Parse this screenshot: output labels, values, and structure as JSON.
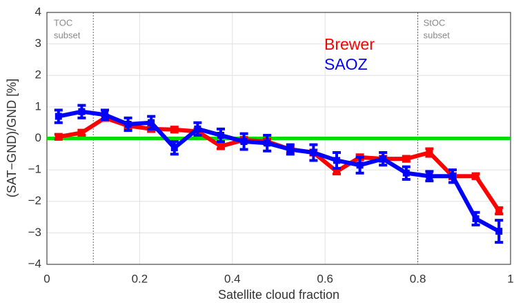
{
  "chart_data": {
    "type": "line",
    "xlabel": "Satellite cloud fraction",
    "ylabel": "(SAT−GND)/GND [%]",
    "x": [
      0.025,
      0.075,
      0.125,
      0.175,
      0.225,
      0.275,
      0.325,
      0.375,
      0.425,
      0.475,
      0.525,
      0.575,
      0.625,
      0.675,
      0.725,
      0.775,
      0.825,
      0.875,
      0.925,
      0.975
    ],
    "series": [
      {
        "name": "Brewer",
        "color": "#ff0000",
        "values": [
          0.05,
          0.18,
          0.65,
          0.4,
          0.3,
          0.28,
          0.22,
          -0.25,
          -0.05,
          -0.1,
          -0.35,
          -0.45,
          -1.05,
          -0.6,
          -0.65,
          -0.65,
          -0.45,
          -1.2,
          -1.2,
          -2.3
        ],
        "errors": [
          0.08,
          0.08,
          0.08,
          0.08,
          0.08,
          0.08,
          0.08,
          0.08,
          0.08,
          0.08,
          0.08,
          0.08,
          0.08,
          0.08,
          0.08,
          0.08,
          0.12,
          0.08,
          0.08,
          0.1
        ]
      },
      {
        "name": "SAOZ",
        "color": "#0000ff",
        "values": [
          0.7,
          0.85,
          0.75,
          0.45,
          0.5,
          -0.3,
          0.3,
          0.1,
          -0.1,
          -0.15,
          -0.35,
          -0.45,
          -0.7,
          -0.85,
          -0.65,
          -1.1,
          -1.2,
          -1.2,
          -2.55,
          -2.95
        ],
        "errors": [
          0.2,
          0.2,
          0.15,
          0.2,
          0.2,
          0.2,
          0.2,
          0.2,
          0.25,
          0.25,
          0.15,
          0.25,
          0.25,
          0.25,
          0.2,
          0.2,
          0.15,
          0.2,
          0.2,
          0.35
        ]
      }
    ],
    "xlim": [
      0,
      1
    ],
    "xticks": [
      0,
      0.2,
      0.4,
      0.6,
      0.8,
      1
    ],
    "ylim": [
      -4,
      4
    ],
    "yticks": [
      {
        "value": -4,
        "label": "−4"
      },
      {
        "value": -3,
        "label": "−3"
      },
      {
        "value": -2,
        "label": "−2"
      },
      {
        "value": -1,
        "label": "−1"
      },
      0,
      1,
      2,
      3,
      4
    ],
    "grid": true,
    "hline": 0,
    "hline_color": "#00e000",
    "vlines": [
      0.1,
      0.8
    ],
    "annotations": [
      [
        "TOC",
        "subset"
      ],
      [
        "StOC",
        "subset"
      ]
    ]
  }
}
